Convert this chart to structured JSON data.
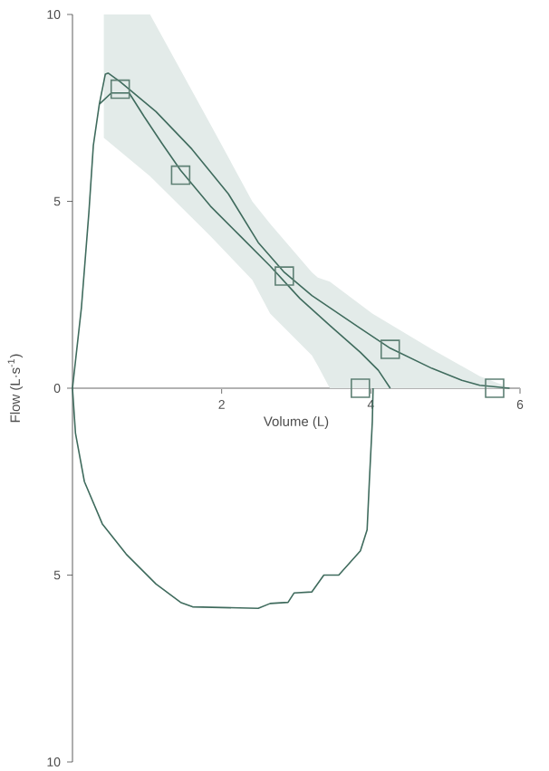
{
  "chart_data": {
    "type": "line",
    "xlabel": "Volume (L)",
    "ylabel": "Flow (L·s$^{-1}$)",
    "xlim": [
      0,
      6
    ],
    "ylim": [
      -10,
      10
    ],
    "xticks": [
      2,
      4,
      6
    ],
    "yticks": [
      {
        "value": -10,
        "label": "10"
      },
      {
        "value": -5,
        "label": "5"
      },
      0,
      5,
      10
    ],
    "series": [
      {
        "type": "line",
        "color": "#e3ebe9",
        "x": [
          0.42,
          1.04,
          1.85,
          2.41,
          2.65,
          3.21,
          3.29,
          3.45,
          4.02,
          4.82,
          5.46,
          5.78
        ],
        "values": [
          null,
          null,
          null,
          null,
          null,
          null,
          null,
          null,
          null,
          null,
          null,
          null
        ],
        "upper": [
          10,
          10,
          7.06,
          5.0,
          4.4,
          3.1,
          2.96,
          2.85,
          2.0,
          1.04,
          0.32,
          0.08
        ],
        "lower": [
          6.7,
          5.67,
          4.07,
          2.9,
          2.0,
          0.88,
          0.6,
          0,
          0,
          0,
          0,
          0
        ]
      },
      {
        "color": "#3f6b5d",
        "x": [
          4.03,
          4.02,
          3.98,
          3.95,
          3.86,
          3.57,
          3.37,
          3.21,
          2.97,
          2.89,
          2.65,
          2.49,
          1.61,
          1.45,
          1.12,
          0.72,
          0.4,
          0.16,
          0.04,
          0,
          0.12,
          0.22,
          0.28,
          0.36,
          0.44,
          0.48,
          0.64,
          1.12,
          1.6,
          2.09,
          2.49,
          2.84,
          3.21,
          3.86,
          4.26,
          4.82,
          5.22,
          5.46,
          5.86,
          null,
          0.36,
          0.52,
          0.76,
          0.96,
          1.2,
          1.45,
          1.85,
          2.25,
          2.65,
          3.05,
          3.45,
          3.86,
          4.1,
          4.26
        ],
        "values": [
          0,
          -0.89,
          -2.5,
          -3.79,
          -4.35,
          -5.0,
          -5.0,
          -5.45,
          -5.48,
          -5.73,
          -5.76,
          -5.89,
          -5.85,
          -5.73,
          -5.24,
          -4.44,
          -3.63,
          -2.5,
          -1.2,
          0,
          2.16,
          4.7,
          6.5,
          7.6,
          8.4,
          8.43,
          8.2,
          7.4,
          6.4,
          5.2,
          3.9,
          3.1,
          2.48,
          1.6,
          1.07,
          0.53,
          0.21,
          0.08,
          0,
          null,
          7.6,
          7.9,
          7.9,
          7.27,
          6.55,
          5.83,
          4.87,
          4.07,
          3.27,
          2.4,
          1.68,
          0.96,
          0.48,
          0
        ]
      },
      {
        "type": "scatter",
        "marker": "square",
        "color": "#5e8074",
        "x": [
          0.64,
          1.45,
          2.84,
          4.26,
          3.86,
          5.66
        ],
        "values": [
          8.0,
          5.7,
          3.0,
          1.04,
          0,
          0
        ]
      }
    ]
  }
}
